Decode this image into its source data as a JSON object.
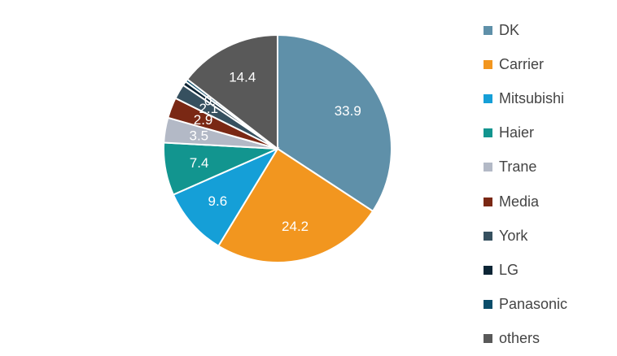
{
  "chart_data": {
    "type": "pie",
    "categories": [
      "DK",
      "Carrier",
      "Mitsubishi",
      "Haier",
      "Trane",
      "Media",
      "York",
      "LG",
      "Panasonic",
      "others"
    ],
    "values": [
      33.9,
      24.2,
      9.6,
      7.4,
      3.5,
      2.9,
      2.1,
      0.6,
      0.4,
      14.4
    ],
    "value_labels": [
      "33.9",
      "24.2",
      "9.6",
      "7.4",
      "3.5",
      "2.9",
      "2.1",
      "",
      "0.4",
      "14.4"
    ],
    "colors": [
      "#5f90a9",
      "#f2961f",
      "#159fd7",
      "#12958f",
      "#b3b9c6",
      "#7a2814",
      "#36505f",
      "#0c2535",
      "#0a4d6a",
      "#595959"
    ],
    "legend_position": "right"
  }
}
